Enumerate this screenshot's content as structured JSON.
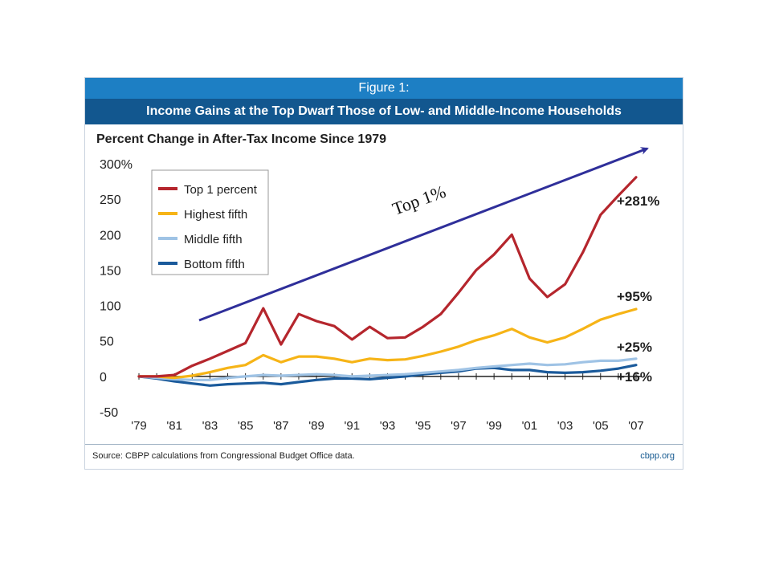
{
  "figure": {
    "label": "Figure 1:",
    "title": "Income Gains at the Top Dwarf Those of Low- and Middle-Income Households",
    "source": "Source: CBPP calculations from Congressional Budget Office data.",
    "site": "cbpp.org",
    "annotation": "Top 1%"
  },
  "chart_data": {
    "type": "line",
    "title": "Percent Change in After-Tax Income Since 1979",
    "xlabel": "",
    "ylabel": "",
    "ylim": [
      -50,
      300
    ],
    "xlim": [
      1979,
      2007
    ],
    "yticks": [
      "300%",
      "250",
      "200",
      "150",
      "100",
      "50",
      "0",
      "-50"
    ],
    "xticks": [
      "'79",
      "'81",
      "'83",
      "'85",
      "'87",
      "'89",
      "'91",
      "'93",
      "'95",
      "'97",
      "'99",
      "'01",
      "'03",
      "'05",
      "'07"
    ],
    "legend_position": "top-left",
    "x": [
      1979,
      1980,
      1981,
      1982,
      1983,
      1984,
      1985,
      1986,
      1987,
      1988,
      1989,
      1990,
      1991,
      1992,
      1993,
      1994,
      1995,
      1996,
      1997,
      1998,
      1999,
      2000,
      2001,
      2002,
      2003,
      2004,
      2005,
      2006,
      2007
    ],
    "series": [
      {
        "name": "Top 1 percent",
        "color": "#b5262d",
        "end_label": "+281%",
        "values": [
          0,
          0,
          2,
          15,
          25,
          36,
          47,
          96,
          45,
          88,
          78,
          71,
          52,
          70,
          54,
          55,
          70,
          88,
          118,
          150,
          172,
          200,
          138,
          112,
          130,
          175,
          228,
          255,
          281
        ]
      },
      {
        "name": "Highest fifth",
        "color": "#f6b417",
        "end_label": "+95%",
        "values": [
          0,
          0,
          -2,
          1,
          6,
          12,
          16,
          30,
          20,
          28,
          28,
          25,
          20,
          25,
          23,
          24,
          29,
          35,
          42,
          51,
          58,
          67,
          55,
          48,
          55,
          67,
          80,
          88,
          95
        ]
      },
      {
        "name": "Middle fifth",
        "color": "#9fc3e5",
        "end_label": "+25%",
        "values": [
          0,
          -2,
          -4,
          -5,
          -5,
          -2,
          0,
          2,
          1,
          2,
          3,
          2,
          0,
          1,
          2,
          3,
          5,
          7,
          9,
          12,
          14,
          16,
          18,
          16,
          17,
          20,
          22,
          22,
          25
        ]
      },
      {
        "name": "Bottom fifth",
        "color": "#1a5a9b",
        "end_label": "+16%",
        "values": [
          0,
          -3,
          -7,
          -10,
          -13,
          -11,
          -10,
          -9,
          -11,
          -8,
          -5,
          -3,
          -3,
          -4,
          -2,
          0,
          3,
          5,
          7,
          11,
          12,
          9,
          9,
          6,
          5,
          6,
          8,
          11,
          16
        ]
      }
    ]
  }
}
